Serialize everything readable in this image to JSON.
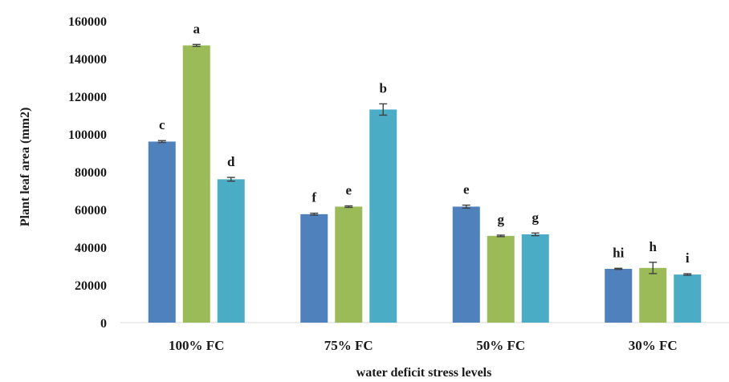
{
  "chart_data": {
    "type": "bar",
    "title": "",
    "xlabel": "water deficit stress levels",
    "ylabel": "Plant leaf area (mm2)",
    "ylim": [
      0,
      160000
    ],
    "yticks": [
      0,
      20000,
      40000,
      60000,
      80000,
      100000,
      120000,
      140000,
      160000
    ],
    "categories": [
      "100% FC",
      "75% FC",
      "50% FC",
      "30% FC"
    ],
    "grid": false,
    "legend": "none",
    "series": [
      {
        "color": "#4f81bd",
        "values": [
          96000,
          57500,
          61500,
          28500
        ],
        "errors": [
          500,
          500,
          800,
          300
        ],
        "labels": [
          "c",
          "f",
          "e",
          "hi"
        ]
      },
      {
        "color": "#9bbb59",
        "values": [
          147000,
          61500,
          46000,
          29000
        ],
        "errors": [
          500,
          400,
          400,
          3000
        ],
        "labels": [
          "a",
          "e",
          "g",
          "h"
        ]
      },
      {
        "color": "#4bacc6",
        "values": [
          76000,
          113000,
          46800,
          25500
        ],
        "errors": [
          1000,
          3000,
          700,
          400
        ],
        "labels": [
          "d",
          "b",
          "g",
          "i"
        ]
      }
    ]
  }
}
